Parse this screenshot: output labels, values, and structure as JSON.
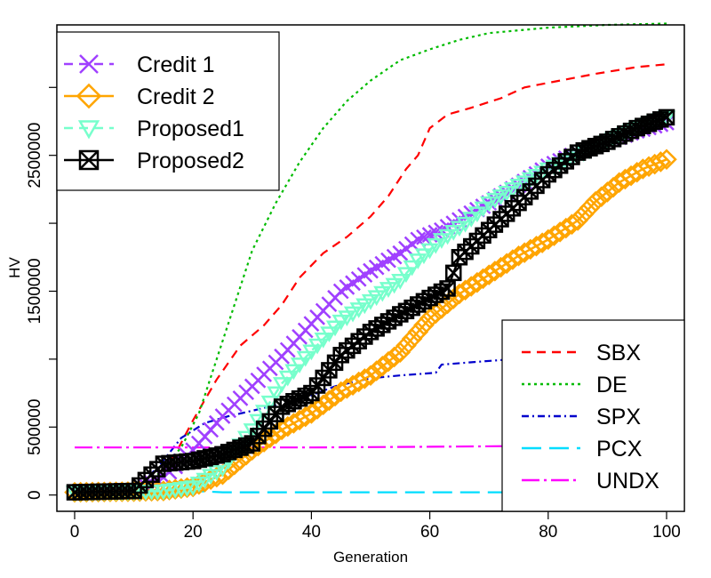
{
  "chart_data": {
    "type": "line",
    "title": "",
    "xlabel": "Generation",
    "ylabel": "HV",
    "xlim": [
      -3,
      103
    ],
    "ylim": [
      -120000,
      3460000
    ],
    "xticks": [
      0,
      20,
      40,
      60,
      80,
      100
    ],
    "yticks": [
      0,
      500000,
      1000000,
      1500000,
      2000000,
      2500000,
      3000000
    ],
    "ytick_labels": [
      "0",
      "500000",
      "",
      "1500000",
      "",
      "2500000",
      ""
    ],
    "grid": false,
    "legends": [
      {
        "placement": "top-left",
        "entries": [
          "Credit 1",
          "Credit 2",
          "Proposed1",
          "Proposed2"
        ]
      },
      {
        "placement": "bottom-right",
        "entries": [
          "SBX",
          "DE",
          "SPX",
          "PCX",
          "UNDX"
        ]
      }
    ],
    "series": [
      {
        "name": "SBX",
        "color": "#ff0000",
        "dash": "dashed",
        "marker": "none",
        "points": [
          [
            0,
            30000
          ],
          [
            10,
            40000
          ],
          [
            13,
            100000
          ],
          [
            17,
            300000
          ],
          [
            20,
            550000
          ],
          [
            24,
            850000
          ],
          [
            28,
            1100000
          ],
          [
            32,
            1250000
          ],
          [
            35,
            1400000
          ],
          [
            38,
            1600000
          ],
          [
            42,
            1780000
          ],
          [
            46,
            1900000
          ],
          [
            50,
            2050000
          ],
          [
            53,
            2200000
          ],
          [
            56,
            2400000
          ],
          [
            58,
            2500000
          ],
          [
            60,
            2700000
          ],
          [
            63,
            2800000
          ],
          [
            67,
            2850000
          ],
          [
            72,
            2920000
          ],
          [
            76,
            3000000
          ],
          [
            82,
            3050000
          ],
          [
            88,
            3100000
          ],
          [
            95,
            3150000
          ],
          [
            100,
            3170000
          ]
        ]
      },
      {
        "name": "DE",
        "color": "#00bb00",
        "dash": "dotted",
        "marker": "none",
        "points": [
          [
            0,
            30000
          ],
          [
            10,
            40000
          ],
          [
            14,
            150000
          ],
          [
            18,
            350000
          ],
          [
            21,
            600000
          ],
          [
            24,
            1000000
          ],
          [
            27,
            1400000
          ],
          [
            30,
            1800000
          ],
          [
            34,
            2150000
          ],
          [
            38,
            2450000
          ],
          [
            42,
            2700000
          ],
          [
            46,
            2900000
          ],
          [
            50,
            3050000
          ],
          [
            55,
            3200000
          ],
          [
            60,
            3280000
          ],
          [
            65,
            3350000
          ],
          [
            70,
            3400000
          ],
          [
            80,
            3440000
          ],
          [
            90,
            3460000
          ],
          [
            100,
            3470000
          ]
        ]
      },
      {
        "name": "SPX",
        "color": "#0000cc",
        "dash": "dashdot",
        "marker": "none",
        "points": [
          [
            0,
            30000
          ],
          [
            10,
            40000
          ],
          [
            14,
            200000
          ],
          [
            18,
            420000
          ],
          [
            22,
            530000
          ],
          [
            26,
            580000
          ],
          [
            30,
            620000
          ],
          [
            38,
            700000
          ],
          [
            44,
            800000
          ],
          [
            50,
            860000
          ],
          [
            55,
            880000
          ],
          [
            61,
            900000
          ],
          [
            62,
            960000
          ],
          [
            68,
            980000
          ],
          [
            74,
            1000000
          ]
        ]
      },
      {
        "name": "PCX",
        "color": "#00ddff",
        "dash": "longdash",
        "marker": "none",
        "points": [
          [
            0,
            20000
          ],
          [
            10,
            20000
          ],
          [
            15,
            40000
          ],
          [
            20,
            30000
          ],
          [
            25,
            20000
          ],
          [
            40,
            20000
          ],
          [
            60,
            20000
          ],
          [
            74,
            20000
          ]
        ]
      },
      {
        "name": "UNDX",
        "color": "#ff00ff",
        "dash": "dotlongdash",
        "marker": "none",
        "points": [
          [
            0,
            350000
          ],
          [
            20,
            350000
          ],
          [
            40,
            350000
          ],
          [
            60,
            355000
          ],
          [
            74,
            360000
          ]
        ]
      },
      {
        "name": "Credit 1",
        "color": "#a040ff",
        "dash": "dashed",
        "marker": "x",
        "points": [
          [
            0,
            20000
          ],
          [
            10,
            30000
          ],
          [
            15,
            130000
          ],
          [
            20,
            330000
          ],
          [
            25,
            580000
          ],
          [
            30,
            800000
          ],
          [
            35,
            1020000
          ],
          [
            40,
            1260000
          ],
          [
            45,
            1500000
          ],
          [
            50,
            1650000
          ],
          [
            55,
            1780000
          ],
          [
            58,
            1880000
          ],
          [
            62,
            1950000
          ],
          [
            66,
            2050000
          ],
          [
            70,
            2150000
          ],
          [
            75,
            2280000
          ],
          [
            80,
            2420000
          ],
          [
            85,
            2520000
          ],
          [
            90,
            2600000
          ],
          [
            95,
            2680000
          ],
          [
            100,
            2740000
          ]
        ]
      },
      {
        "name": "Credit 2",
        "color": "#ffa500",
        "dash": "solid",
        "marker": "diamond",
        "points": [
          [
            0,
            20000
          ],
          [
            10,
            25000
          ],
          [
            15,
            30000
          ],
          [
            20,
            60000
          ],
          [
            25,
            150000
          ],
          [
            30,
            330000
          ],
          [
            35,
            480000
          ],
          [
            40,
            600000
          ],
          [
            45,
            760000
          ],
          [
            50,
            880000
          ],
          [
            55,
            1050000
          ],
          [
            60,
            1300000
          ],
          [
            65,
            1480000
          ],
          [
            70,
            1620000
          ],
          [
            75,
            1760000
          ],
          [
            80,
            1880000
          ],
          [
            85,
            2020000
          ],
          [
            88,
            2160000
          ],
          [
            92,
            2300000
          ],
          [
            96,
            2400000
          ],
          [
            100,
            2470000
          ]
        ]
      },
      {
        "name": "Proposed1",
        "color": "#77ffcc",
        "dash": "dashed",
        "marker": "triangle-down",
        "points": [
          [
            0,
            20000
          ],
          [
            10,
            25000
          ],
          [
            15,
            30000
          ],
          [
            20,
            60000
          ],
          [
            25,
            200000
          ],
          [
            30,
            480000
          ],
          [
            35,
            820000
          ],
          [
            40,
            1060000
          ],
          [
            45,
            1280000
          ],
          [
            50,
            1430000
          ],
          [
            55,
            1580000
          ],
          [
            58,
            1730000
          ],
          [
            62,
            1880000
          ],
          [
            66,
            2000000
          ],
          [
            70,
            2150000
          ],
          [
            75,
            2280000
          ],
          [
            80,
            2400000
          ],
          [
            85,
            2500000
          ],
          [
            90,
            2600000
          ],
          [
            95,
            2700000
          ],
          [
            100,
            2780000
          ]
        ]
      },
      {
        "name": "Proposed2",
        "color": "#000000",
        "dash": "solid",
        "marker": "boxx",
        "points": [
          [
            0,
            20000
          ],
          [
            10,
            30000
          ],
          [
            13,
            150000
          ],
          [
            15,
            230000
          ],
          [
            20,
            250000
          ],
          [
            25,
            300000
          ],
          [
            30,
            380000
          ],
          [
            35,
            650000
          ],
          [
            40,
            750000
          ],
          [
            45,
            1030000
          ],
          [
            50,
            1200000
          ],
          [
            55,
            1330000
          ],
          [
            60,
            1450000
          ],
          [
            63,
            1520000
          ],
          [
            65,
            1750000
          ],
          [
            70,
            1950000
          ],
          [
            75,
            2150000
          ],
          [
            80,
            2360000
          ],
          [
            85,
            2520000
          ],
          [
            90,
            2600000
          ],
          [
            95,
            2700000
          ],
          [
            100,
            2780000
          ]
        ]
      }
    ]
  }
}
